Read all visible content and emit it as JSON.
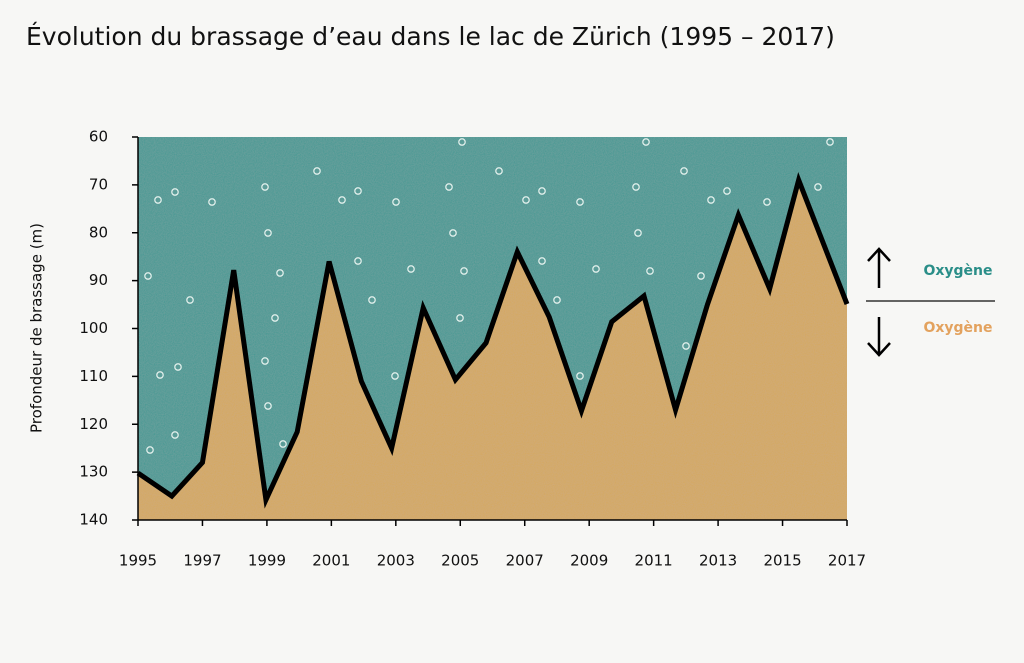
{
  "chart_data": {
    "type": "area",
    "title": "Évolution du brassage d’eau dans le lac de Zürich (1995 – 2017)",
    "y_label": "Profondeur de brassage (m)",
    "x": [
      1995,
      1996.05,
      1997,
      1997.97,
      1998.97,
      1999.94,
      2000.93,
      2001.93,
      2002.87,
      2003.85,
      2004.85,
      2005.8,
      2006.77,
      2007.76,
      2008.76,
      2009.7,
      2010.7,
      2011.68,
      2012.67,
      2013.63,
      2014.6,
      2015.5,
      2017
    ],
    "values": [
      130.2,
      135,
      128,
      87.8,
      135.8,
      121.6,
      86,
      111,
      125,
      95.7,
      110.7,
      103,
      84,
      97.6,
      117.2,
      98.6,
      93.2,
      117,
      95,
      76.3,
      91.7,
      69,
      94.9
    ],
    "color": "#d6a75b",
    "line_color": "#000000",
    "background_color": "#3f9893",
    "xlim": [
      1995,
      2017
    ],
    "xticks": [
      1995,
      1997,
      1999,
      2001,
      2003,
      2005,
      2007,
      2009,
      2011,
      2013,
      2015,
      2017
    ],
    "ylim": [
      60,
      140
    ],
    "y_inverted": true,
    "yticks": [
      60,
      70,
      80,
      90,
      100,
      110,
      120,
      130,
      140
    ],
    "annotations": [
      {
        "text": "Oxygène",
        "color": "#2a8e88"
      },
      {
        "text": "Oxygène",
        "color": "#e3a25e"
      }
    ]
  }
}
